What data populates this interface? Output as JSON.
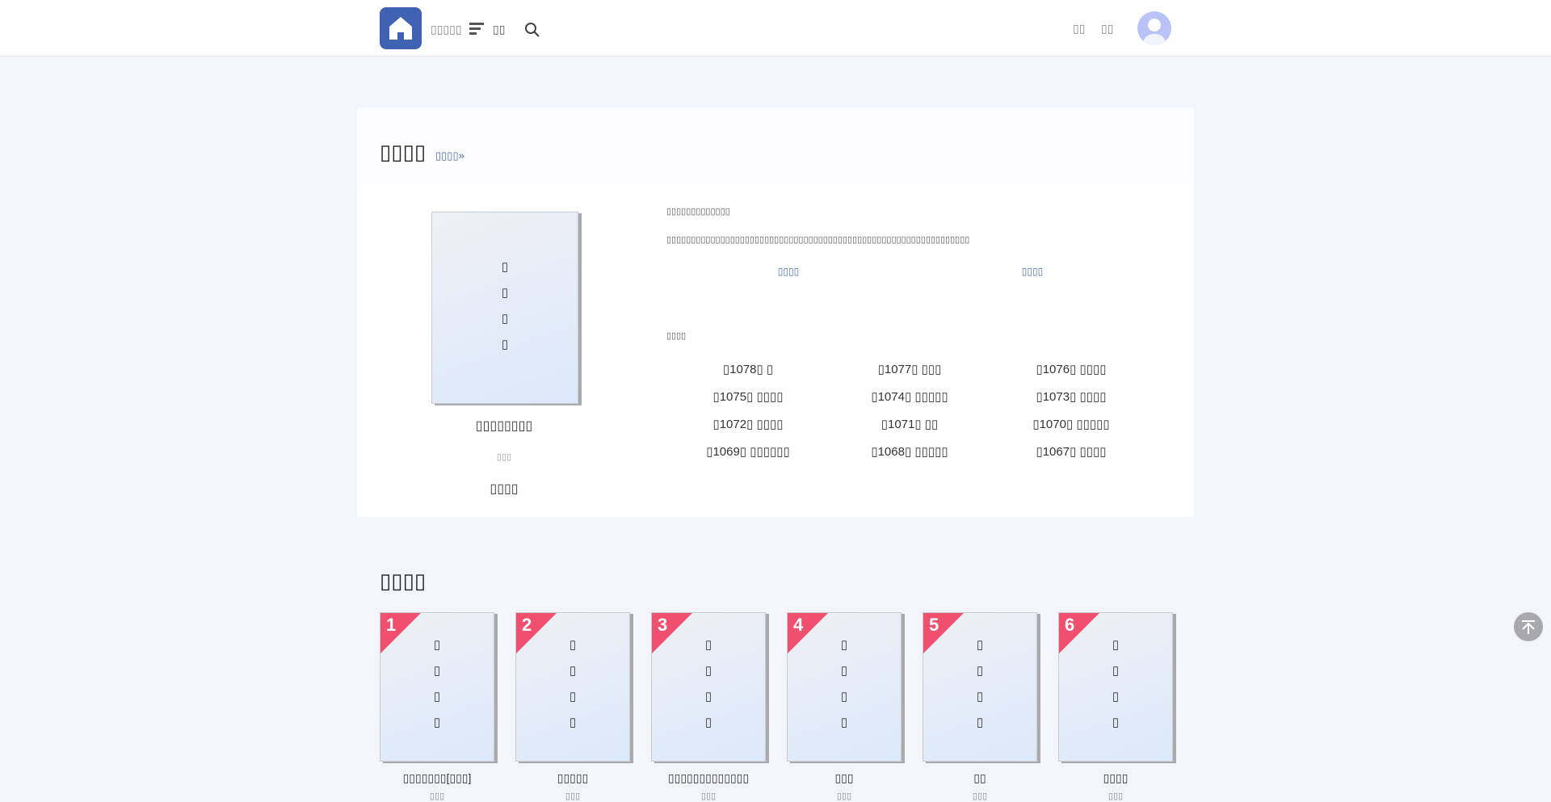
{
  "header": {
    "site_name": "▯▯▯▯▯",
    "nav_label": "▯▯",
    "right_links": [
      "▯▯",
      "▯▯"
    ],
    "brand_color": "#3f63b2"
  },
  "book": {
    "section_title": "▯▯▯▯",
    "more_link": "▯▯▯▯»",
    "cover_text": [
      "▯",
      "▯",
      "▯",
      "▯"
    ],
    "name": "▯▯▯▯▯▯▯▯",
    "author": "▯▯▯",
    "status": "▯▯▯▯",
    "intro_line1": "▯▯▯▯▯▯▯▯▯▯▯▯▯",
    "intro_line2": "▯▯▯▯▯▯▯▯▯▯▯▯▯▯▯▯▯▯▯▯▯▯▯▯▯▯▯▯▯▯▯▯▯▯▯▯▯▯▯▯▯▯▯▯▯▯▯▯▯▯▯▯▯▯▯▯▯▯▯▯▯▯",
    "buttons": [
      "▯▯▯▯",
      "▯▯▯▯"
    ],
    "chapters_label": "▯▯▯▯",
    "chapters": [
      "▯1078▯ ▯",
      "▯1077▯ ▯▯▯",
      "▯1076▯ ▯▯▯▯",
      "▯1075▯ ▯▯▯▯",
      "▯1074▯ ▯▯▯▯▯",
      "▯1073▯ ▯▯▯▯",
      "▯1072▯ ▯▯▯▯",
      "▯1071▯ ▯▯",
      "▯1070▯ ▯▯▯▯▯",
      "▯1069▯ ▯▯▯▯▯▯",
      "▯1068▯ ▯▯▯▯▯",
      "▯1067▯ ▯▯▯▯"
    ]
  },
  "ranking": {
    "section_title": "▯▯▯▯",
    "badge_color": "#f0506e",
    "items": [
      {
        "rank": "1",
        "cover": [
          "▯",
          "▯",
          "▯",
          "▯"
        ],
        "title": "▯▯▯▯▯▯▯[▯▯▯]",
        "author": "▯▯▯"
      },
      {
        "rank": "2",
        "cover": [
          "▯",
          "▯",
          "▯",
          "▯"
        ],
        "title": "▯▯▯▯▯",
        "author": "▯▯▯"
      },
      {
        "rank": "3",
        "cover": [
          "▯",
          "▯",
          "▯",
          "▯"
        ],
        "title": "▯▯▯▯▯▯▯▯▯▯▯▯▯",
        "author": "▯▯▯"
      },
      {
        "rank": "4",
        "cover": [
          "▯",
          "▯",
          "▯",
          "▯"
        ],
        "title": "▯▯▯",
        "author": "▯▯▯"
      },
      {
        "rank": "5",
        "cover": [
          "▯",
          "▯",
          "▯",
          "▯"
        ],
        "title": "▯▯",
        "author": "▯▯▯"
      },
      {
        "rank": "6",
        "cover": [
          "▯",
          "▯",
          "▯",
          "▯"
        ],
        "title": "▯▯▯▯",
        "author": "▯▯▯"
      }
    ]
  }
}
